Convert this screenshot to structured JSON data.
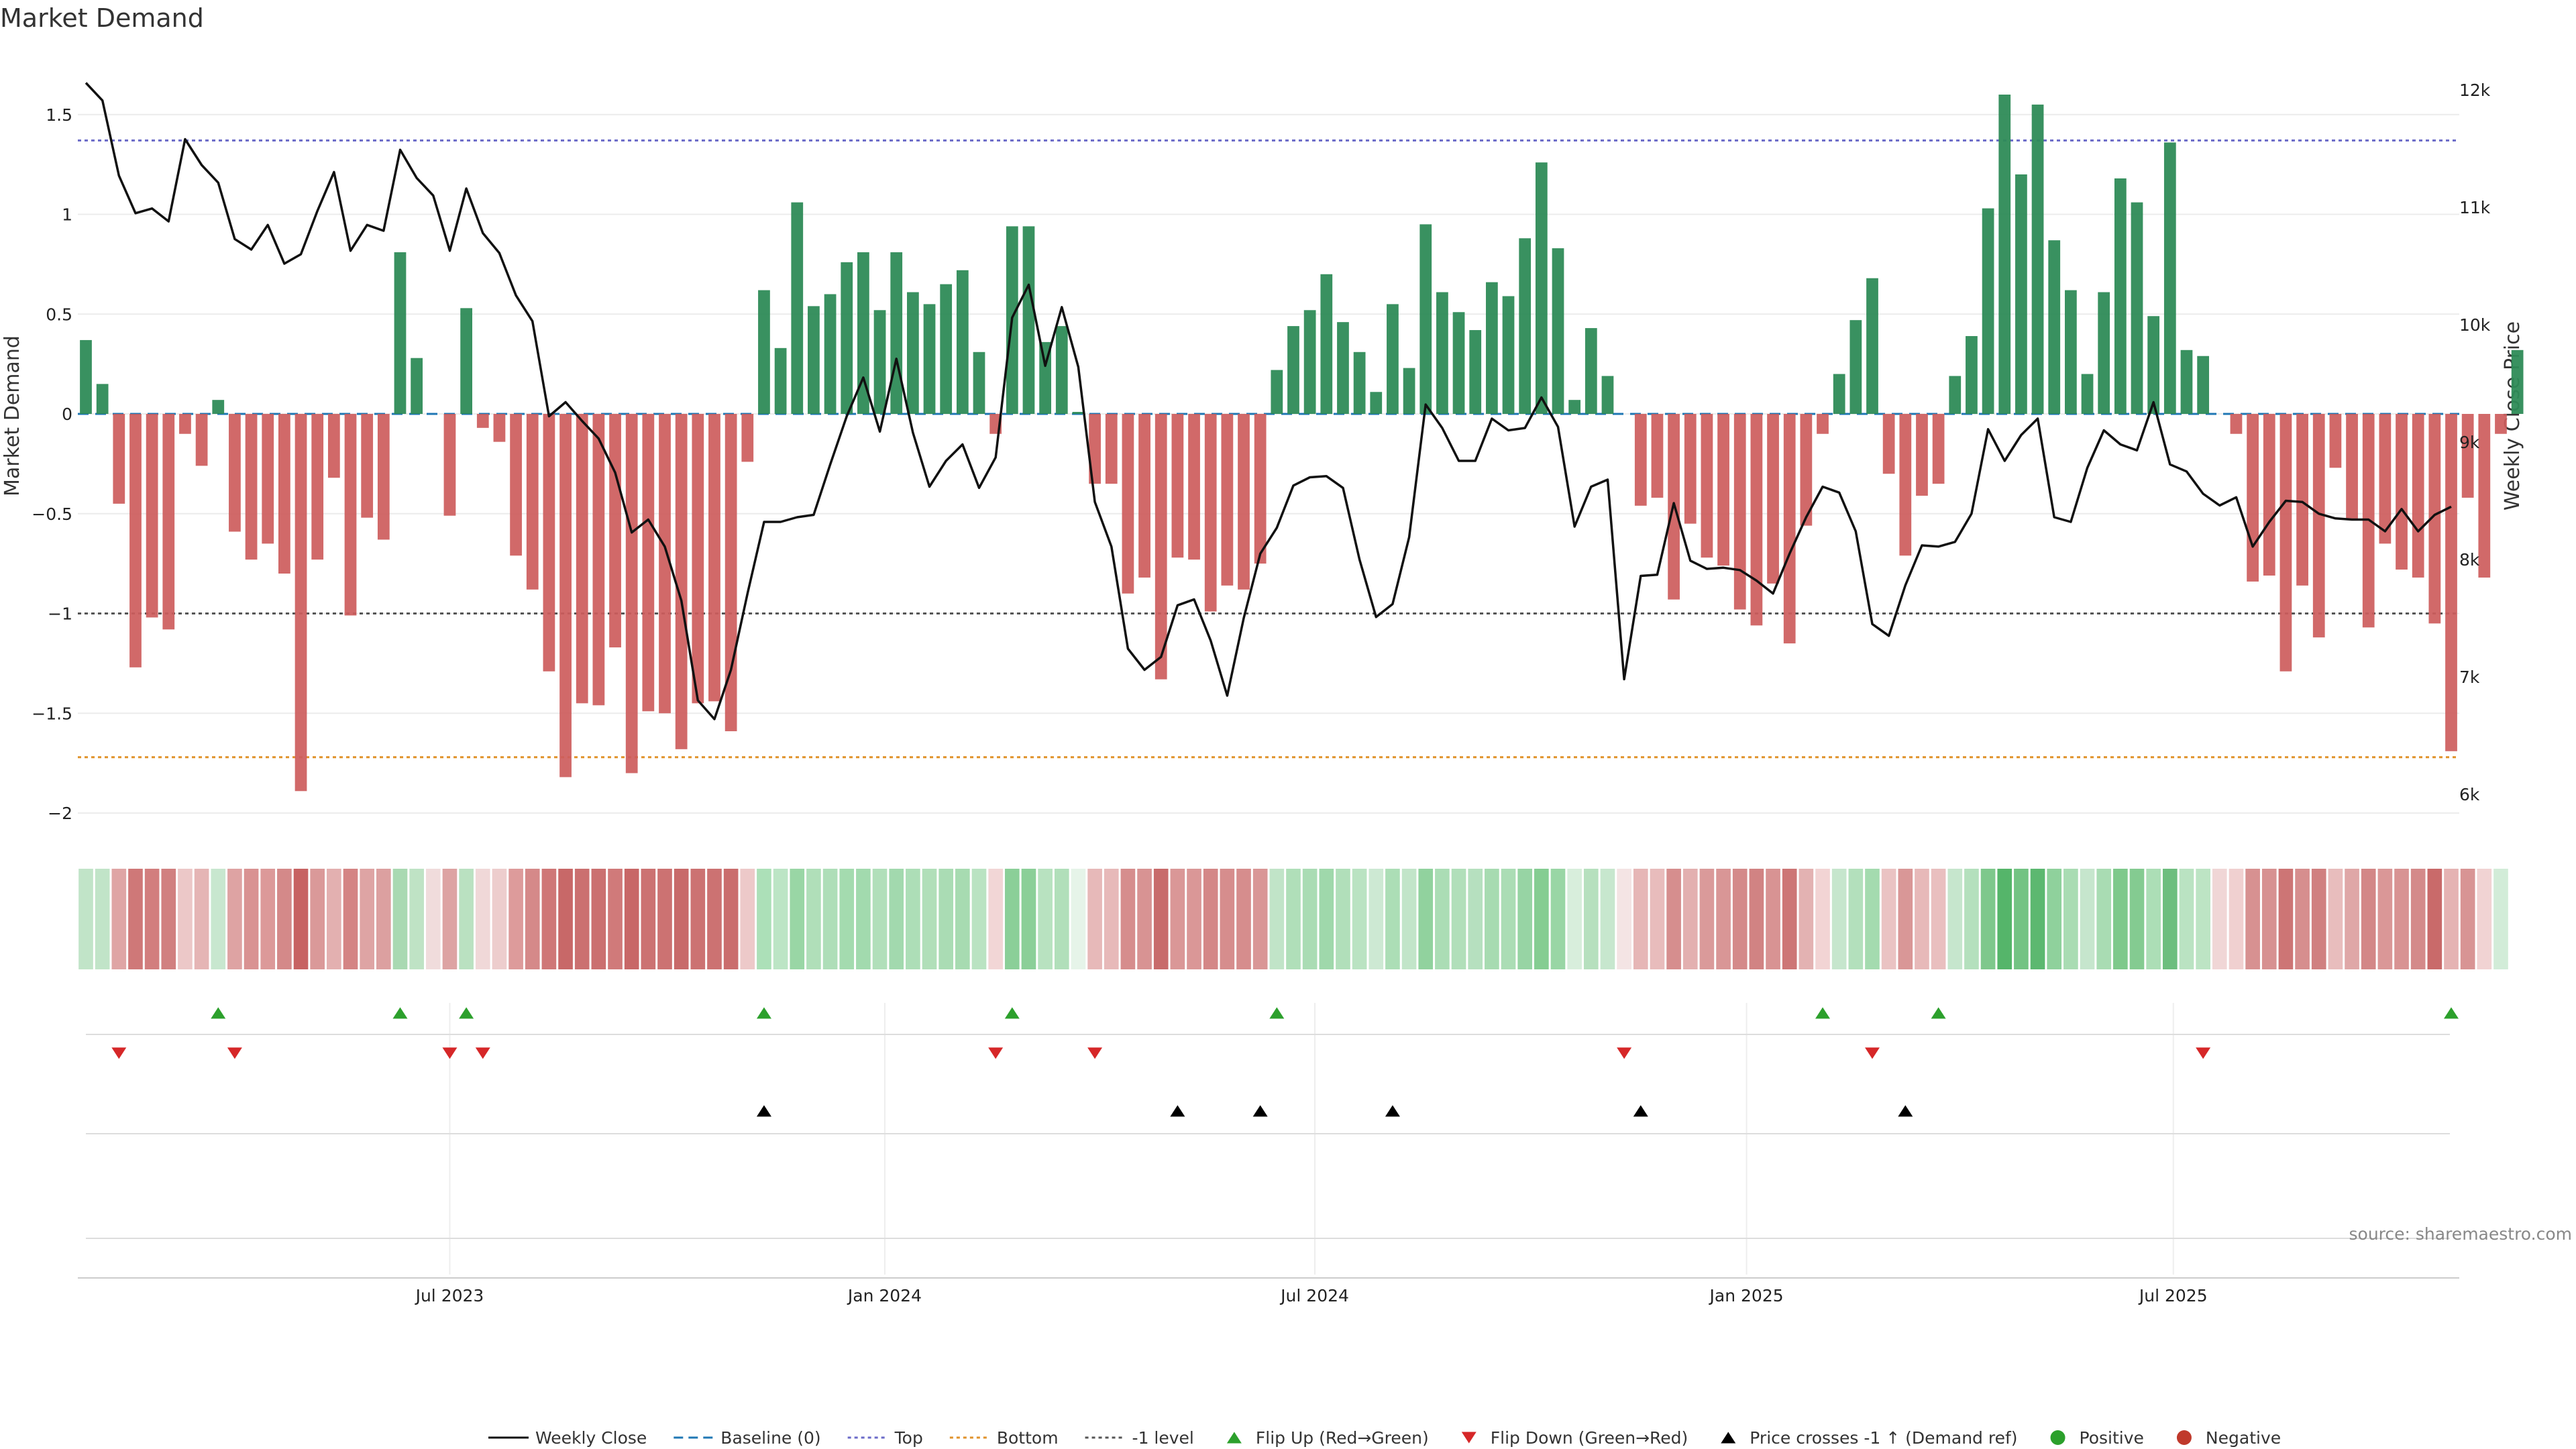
{
  "chart_data": {
    "type": "bar",
    "title": "Market Demand",
    "ylabel": "Market Demand",
    "y2label": "Weekly Close Price",
    "ylim": [
      -2.1,
      1.7
    ],
    "y2lim": [
      5800,
      12300
    ],
    "yticks": [
      1.5,
      1,
      0.5,
      0,
      -0.5,
      -1,
      -1.5,
      -2
    ],
    "ytick_labels": [
      "1.5",
      "1",
      "0.5",
      "0",
      "−0.5",
      "−1",
      "−1.5",
      "−2"
    ],
    "y2ticks": [
      12000,
      11000,
      10000,
      9000,
      8000,
      7000,
      6000
    ],
    "y2tick_labels": [
      "12k",
      "11k",
      "10k",
      "9k",
      "8k",
      "7k",
      "6k"
    ],
    "x_start": "2023-01-13",
    "x_end": "2025-10-24",
    "week_count": 144,
    "xticks": [
      {
        "label": "Jul 2023",
        "index": 22
      },
      {
        "label": "Jan 2024",
        "index": 48.3
      },
      {
        "label": "Jul 2024",
        "index": 74.3
      },
      {
        "label": "Jan 2025",
        "index": 100.4
      },
      {
        "label": "Jul 2025",
        "index": 126.2
      }
    ],
    "reference_lines": {
      "baseline": 0,
      "top": 1.37,
      "bottom": -1.72,
      "minus_one": -1
    },
    "series": [
      {
        "name": "Market Demand",
        "values": [
          0.37,
          0.15,
          -0.45,
          -1.27,
          -1.02,
          -1.08,
          -0.1,
          -0.26,
          0.07,
          -0.59,
          -0.73,
          -0.65,
          -0.8,
          -1.89,
          -0.73,
          -0.32,
          -1.01,
          -0.52,
          -0.63,
          0.81,
          0.28,
          0,
          -0.51,
          0.53,
          -0.07,
          -0.14,
          -0.71,
          -0.88,
          -1.29,
          -1.82,
          -1.45,
          -1.46,
          -1.17,
          -1.8,
          -1.49,
          -1.5,
          -1.68,
          -1.45,
          -1.44,
          -1.59,
          -0.24,
          0.62,
          0.33,
          1.06,
          0.54,
          0.6,
          0.76,
          0.81,
          0.52,
          0.81,
          0.61,
          0.55,
          0.65,
          0.72,
          0.31,
          -0.1,
          0.94,
          0.94,
          0.36,
          0.44,
          0.01,
          -0.35,
          -0.35,
          -0.9,
          -0.82,
          -1.33,
          -0.72,
          -0.73,
          -0.99,
          -0.86,
          -0.88,
          -0.75,
          0.22,
          0.44,
          0.52,
          0.7,
          0.46,
          0.31,
          0.11,
          0.55,
          0.23,
          0.95,
          0.61,
          0.51,
          0.42,
          0.66,
          0.59,
          0.88,
          1.26,
          0.83,
          0.07,
          0.43,
          0.19,
          0,
          -0.46,
          -0.42,
          -0.93,
          -0.55,
          -0.72,
          -0.76,
          -0.98,
          -1.06,
          -0.85,
          -1.15,
          -0.56,
          -0.1,
          0.2,
          0.47,
          0.68,
          -0.3,
          -0.71,
          -0.41,
          -0.35,
          0.19,
          0.39,
          1.03,
          1.6,
          1.2,
          1.55,
          0.87,
          0.62,
          0.2,
          0.61,
          1.18,
          1.06,
          0.49,
          1.36,
          0.32,
          0.29,
          0,
          -0.1,
          -0.84,
          -0.81,
          -1.29,
          -0.86,
          -1.12,
          -0.27,
          -0.53,
          -1.07,
          -0.65,
          -0.78,
          -0.82,
          -1.05,
          -1.69,
          -0.42,
          -0.82,
          -0.1,
          0.32
        ]
      },
      {
        "name": "Weekly Close",
        "values": [
          12060,
          11910,
          11270,
          10950,
          10990,
          10880,
          11580,
          11360,
          11210,
          10730,
          10640,
          10850,
          10520,
          10600,
          10970,
          11300,
          10630,
          10850,
          10800,
          11490,
          11250,
          11100,
          10630,
          11160,
          10780,
          10610,
          10250,
          10030,
          9220,
          9340,
          9180,
          9030,
          8740,
          8230,
          8340,
          8110,
          7650,
          6800,
          6640,
          7060,
          7710,
          8320,
          8320,
          8360,
          8380,
          8810,
          9220,
          9550,
          9090,
          9710,
          9080,
          8620,
          8840,
          8980,
          8610,
          8870,
          10060,
          10340,
          9650,
          10150,
          9640,
          8490,
          8110,
          7240,
          7060,
          7170,
          7610,
          7660,
          7310,
          6840,
          7500,
          8050,
          8270,
          8630,
          8700,
          8710,
          8610,
          8000,
          7510,
          7620,
          8190,
          9320,
          9120,
          8840,
          8840,
          9200,
          9100,
          9120,
          9380,
          9130,
          8280,
          8620,
          8680,
          6980,
          7860,
          7870,
          8480,
          7990,
          7920,
          7930,
          7910,
          7820,
          7710,
          8050,
          8360,
          8620,
          8570,
          8240,
          7450,
          7350,
          7780,
          8120,
          8110,
          8150,
          8390,
          9110,
          8840,
          9060,
          9200,
          8360,
          8320,
          8780,
          9100,
          8980,
          8930,
          9340,
          8810,
          8750,
          8560,
          8460,
          8530,
          8110,
          8320,
          8500,
          8490,
          8390,
          8350,
          8340,
          8340,
          8240,
          8430,
          8240,
          8380,
          8450
        ]
      }
    ],
    "strip": {
      "colors": [
        "#c1e4c8",
        "#c1e4c8",
        "#dfa5a5",
        "#cf7878",
        "#d27e7e",
        "#d18080",
        "#ecc8c8",
        "#e5b5b5",
        "#c8e7cf",
        "#dea3a3",
        "#d99292",
        "#dc9999",
        "#d48989",
        "#c76262",
        "#da9999",
        "#e3b0b0",
        "#d48484",
        "#dea4a4",
        "#dca0a0",
        "#a9d9b2",
        "#bfe3c5",
        "#f0dcdc",
        "#dda3a3",
        "#bae1c1",
        "#f0d8d8",
        "#edcdcd",
        "#dd9b9b",
        "#d58989",
        "#cf7777",
        "#c86868",
        "#cb7070",
        "#cb7070",
        "#d07a7a",
        "#c86767",
        "#cc7272",
        "#cc7272",
        "#c86a6a",
        "#cc7272",
        "#cc7272",
        "#ca6d6d",
        "#edc9c9",
        "#ace0b8",
        "#bce5c5",
        "#99d6a5",
        "#b0dfb9",
        "#aedeb8",
        "#a4dbaf",
        "#a2daae",
        "#b1dfba",
        "#a2d9ae",
        "#addeb7",
        "#b1dfb9",
        "#aadcb4",
        "#a7dbb1",
        "#bae3c2",
        "#f2d6d6",
        "#8bcf98",
        "#8bcf98",
        "#b8e2c0",
        "#b1dfba",
        "#e6f4e9",
        "#e7b9b9",
        "#e7b9b9",
        "#d68d8d",
        "#d89393",
        "#c86b6b",
        "#da9797",
        "#da9797",
        "#d48787",
        "#d68d8d",
        "#d68d8d",
        "#d99696",
        "#c1e4c8",
        "#b0dfb9",
        "#aadcb4",
        "#9fd8ab",
        "#b1dfba",
        "#bae3c2",
        "#cde9d3",
        "#acdeb6",
        "#c2e5c9",
        "#91d29e",
        "#abddb5",
        "#b1dfba",
        "#b6e0bf",
        "#a7dbb1",
        "#abddb5",
        "#97d4a4",
        "#85cd92",
        "#99d6a5",
        "#d8eedc",
        "#b6e0be",
        "#c7e7ce",
        "#f4e4e4",
        "#e6b6b6",
        "#e8bcbc",
        "#d68e8e",
        "#e3b0b0",
        "#da9a9a",
        "#d99696",
        "#d48a8a",
        "#d18383",
        "#d89393",
        "#cd7676",
        "#e3b2b2",
        "#f2d4d4",
        "#c6e6cd",
        "#b3e0bc",
        "#a4dbaf",
        "#eac3c3",
        "#d99797",
        "#e7b9b9",
        "#e9bfbf",
        "#c6e6cd",
        "#b4e0bd",
        "#7ec88c",
        "#55b56a",
        "#73c383",
        "#5cb870",
        "#8fd19c",
        "#a9dcb3",
        "#c6e6cd",
        "#a9dcb3",
        "#7ec98b",
        "#84cb91",
        "#acdeb6",
        "#6dbe7e",
        "#bae3c2",
        "#bde4c4",
        "#f0d6d6",
        "#f0d0d0",
        "#d79191",
        "#d79191",
        "#cd7575",
        "#d68e8e",
        "#d08080",
        "#e8bdbd",
        "#dfa7a7",
        "#d38787",
        "#da9797",
        "#d89393",
        "#d48a8a",
        "#c96a6a",
        "#e5b3b3",
        "#d89494",
        "#f1d3d3",
        "#d2ecd8"
      ]
    },
    "flip_up_indices": [
      8,
      19,
      23,
      41,
      56,
      72,
      105,
      112,
      143
    ],
    "flip_down_indices": [
      2,
      9,
      22,
      24,
      55,
      61,
      93,
      108,
      128
    ],
    "price_cross_indices": [
      41,
      66,
      71,
      79,
      94,
      110
    ],
    "colors": {
      "positive": "#2e8b57",
      "negative": "#cd5c5c",
      "price_line": "#111111",
      "baseline": "#1f77b4",
      "top": "#6a6ac8",
      "bottom": "#e0922a",
      "minus_one": "#555555",
      "flip_up": "#2ca02c",
      "flip_down": "#d62728",
      "price_cross": "#000000",
      "legend_positive": "#2ca02c",
      "legend_negative": "#c0392b"
    },
    "source": "source: sharemaestro.com",
    "legend": [
      {
        "label": "Weekly Close",
        "marker": "line-solid"
      },
      {
        "label": "Baseline (0)",
        "marker": "line-dash"
      },
      {
        "label": "Top",
        "marker": "line-dot-top"
      },
      {
        "label": "Bottom",
        "marker": "line-dot-bottom"
      },
      {
        "label": "-1 level",
        "marker": "line-dot-minus"
      },
      {
        "label": "Flip Up (Red→Green)",
        "marker": "triangle-up-green"
      },
      {
        "label": "Flip Down (Green→Red)",
        "marker": "triangle-down-red"
      },
      {
        "label": "Price crosses -1 ↑ (Demand ref)",
        "marker": "triangle-up-black"
      },
      {
        "label": "Positive",
        "marker": "dot-green"
      },
      {
        "label": "Negative",
        "marker": "dot-red"
      }
    ]
  }
}
